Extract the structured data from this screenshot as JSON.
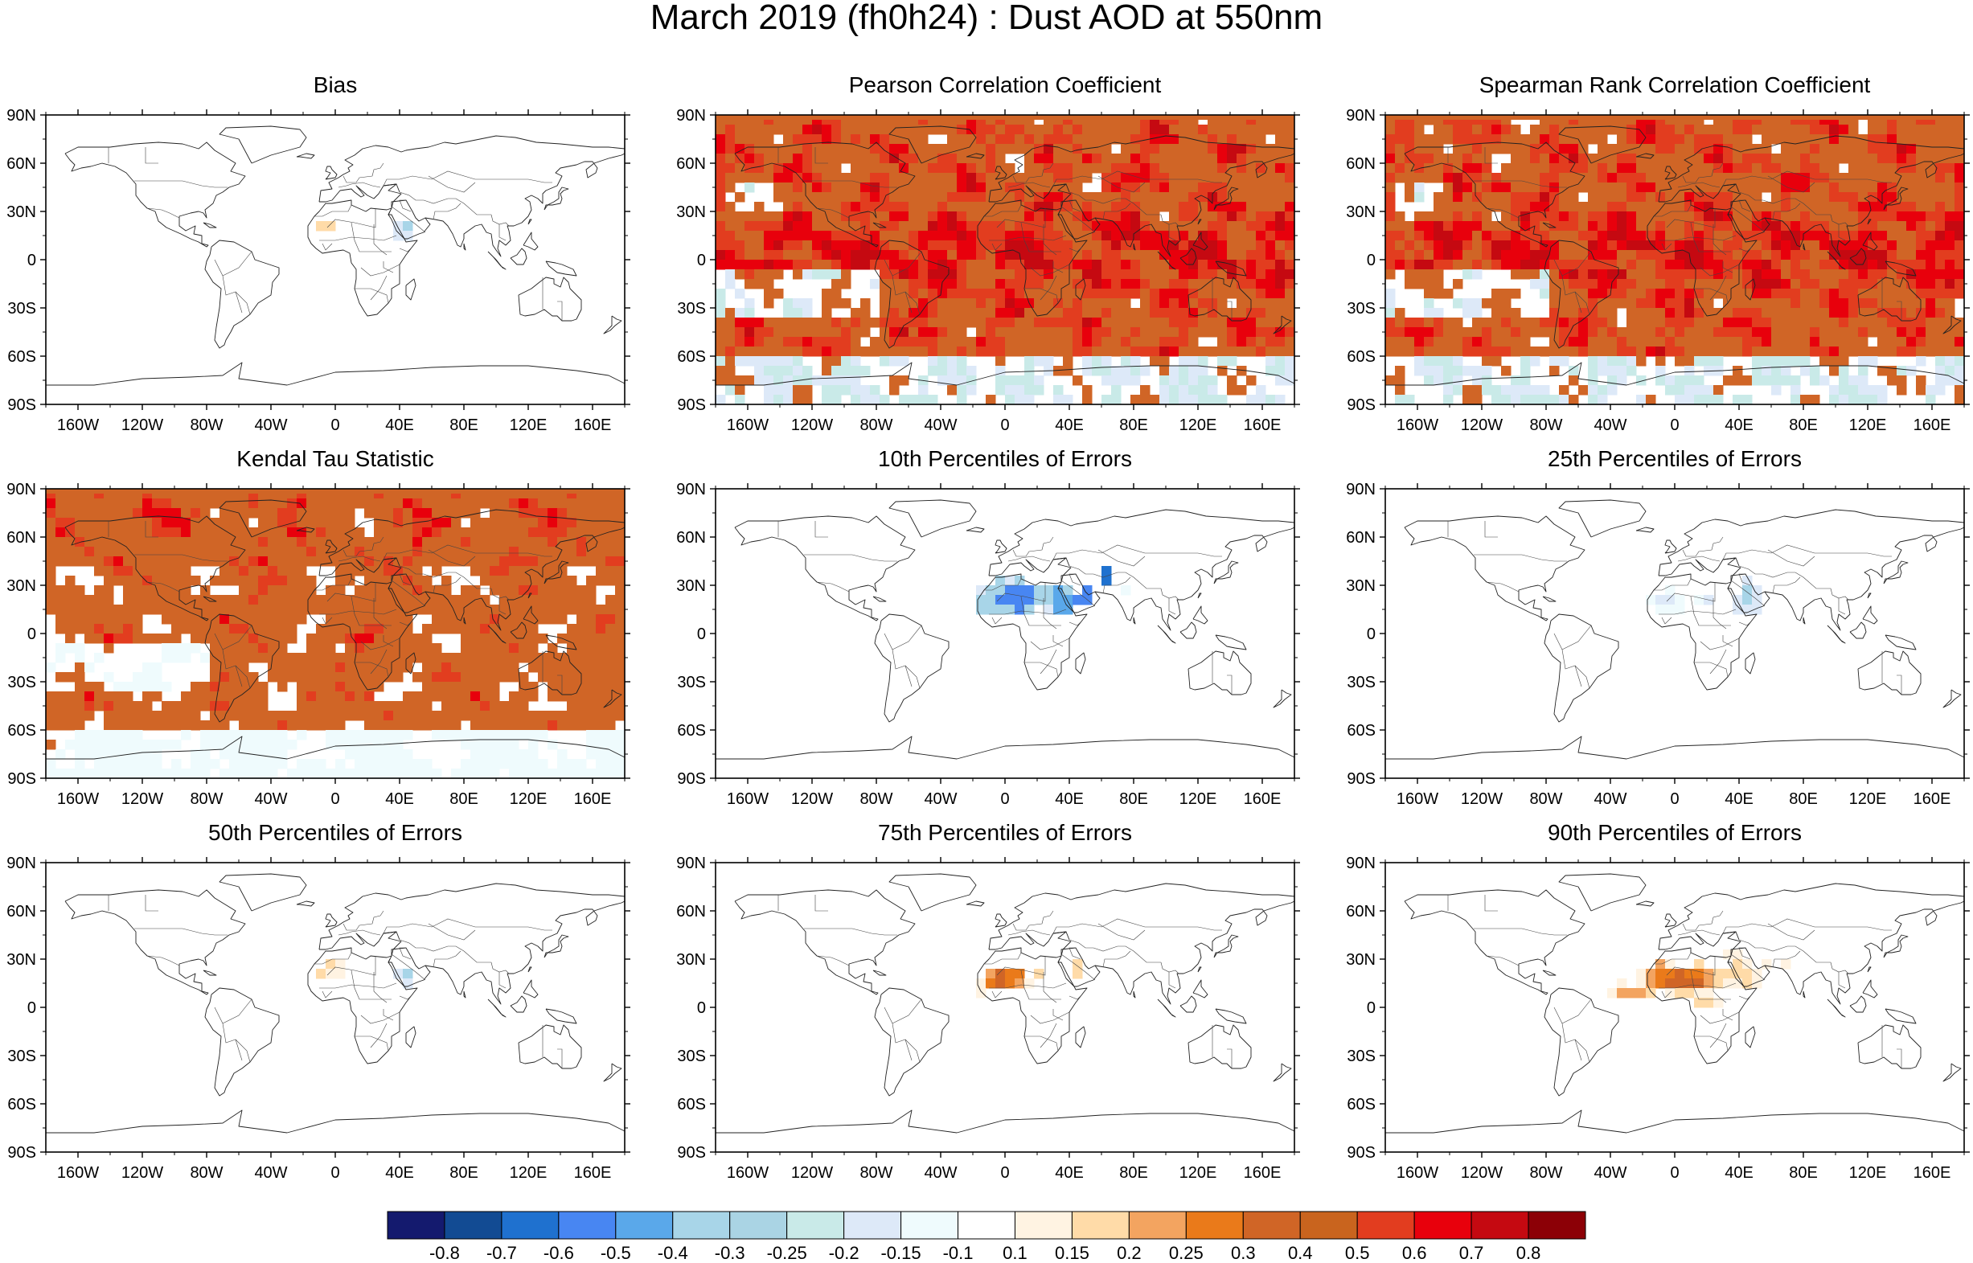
{
  "title": "March 2019 (fh0h24) : Dust AOD at 550nm",
  "axes": {
    "lat_labels": [
      "90N",
      "60N",
      "30N",
      "0",
      "30S",
      "60S",
      "90S"
    ],
    "lon_labels": [
      "160W",
      "120W",
      "80W",
      "40W",
      "0",
      "40E",
      "80E",
      "120E",
      "160E"
    ]
  },
  "panels": [
    {
      "id": "bias",
      "title": "Bias",
      "pattern": "bias"
    },
    {
      "id": "pearson",
      "title": "Pearson Correlation Coefficient",
      "pattern": "pearson"
    },
    {
      "id": "spearman",
      "title": "Spearman Rank Correlation Coefficient",
      "pattern": "spearman"
    },
    {
      "id": "kendall",
      "title": "Kendal Tau Statistic",
      "pattern": "kendall"
    },
    {
      "id": "p10",
      "title": "10th Percentiles of Errors",
      "pattern": "p10"
    },
    {
      "id": "p25",
      "title": "25th Percentiles of Errors",
      "pattern": "p25"
    },
    {
      "id": "p50",
      "title": "50th Percentiles of Errors",
      "pattern": "p50"
    },
    {
      "id": "p75",
      "title": "75th Percentiles of Errors",
      "pattern": "p75"
    },
    {
      "id": "p90",
      "title": "90th Percentiles of Errors",
      "pattern": "p90"
    }
  ],
  "colorbar": {
    "colors": [
      "#141a6e",
      "#124b93",
      "#1f71cf",
      "#4886f2",
      "#5aa8ea",
      "#a8d5e8",
      "#aad4e4",
      "#c9eae8",
      "#dde9f8",
      "#effbfd",
      "#ffffff",
      "#fff3e2",
      "#ffdba8",
      "#f3a460",
      "#ea7a1a",
      "#d06526",
      "#c9641e",
      "#e23d1f",
      "#e8000c",
      "#c50911",
      "#8c0006"
    ],
    "labels": [
      "-0.8",
      "-0.7",
      "-0.6",
      "-0.5",
      "-0.4",
      "-0.3",
      "-0.25",
      "-0.2",
      "-0.15",
      "-0.1",
      "0.1",
      "0.15",
      "0.2",
      "0.25",
      "0.3",
      "0.4",
      "0.5",
      "0.6",
      "0.7",
      "0.8"
    ]
  }
}
